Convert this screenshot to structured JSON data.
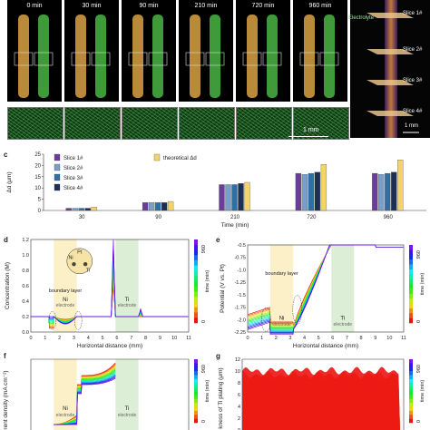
{
  "top_panel": {
    "time_labels": [
      "0 min",
      "30 min",
      "90 min",
      "210 min",
      "720 min",
      "960 min"
    ],
    "scale_bar_inset": "1 mm",
    "rod_view": {
      "electrolyte_label": "Electrolyte",
      "slice_labels": [
        "Slice 1#",
        "Slice 2#",
        "Slice 3#",
        "Slice 4#"
      ],
      "scale_bar": "1 mm"
    }
  },
  "panel_c": {
    "letter": "c",
    "chart_data": {
      "type": "bar",
      "categories": [
        "30",
        "90",
        "210",
        "720",
        "960"
      ],
      "series": [
        {
          "name": "Slice 1#",
          "color": "#6a3d9a",
          "values": [
            1.0,
            3.5,
            11.5,
            16.5,
            16.5
          ]
        },
        {
          "name": "Slice 2#",
          "color": "#7a9ec6",
          "values": [
            1.0,
            3.5,
            11.5,
            16.0,
            16.0
          ]
        },
        {
          "name": "Slice 3#",
          "color": "#2e6fa6",
          "values": [
            1.0,
            3.5,
            11.5,
            16.5,
            16.5
          ]
        },
        {
          "name": "Slice 4#",
          "color": "#1c2f55",
          "values": [
            1.0,
            3.5,
            12.0,
            17.0,
            17.0
          ]
        },
        {
          "name": "theoretical Δd",
          "color": "#f5d36b",
          "values": [
            1.5,
            4.0,
            12.5,
            20.5,
            22.5
          ]
        }
      ],
      "ylabel": "Δd (μm)",
      "xlabel": "Time (min)",
      "ylim": [
        0,
        25
      ],
      "yticks": [
        "0",
        "5",
        "10",
        "15",
        "20",
        "25"
      ],
      "legend": "top-left"
    }
  },
  "panel_d": {
    "letter": "d",
    "ylabel": "Concentration (M)",
    "xlabel": "Horizontal distance (mm)",
    "xticks": [
      "0",
      "1",
      "2",
      "3",
      "4",
      "5",
      "6",
      "7",
      "8",
      "9",
      "10",
      "11"
    ],
    "yticks": [
      "0.0",
      "0.2",
      "0.4",
      "0.6",
      "0.8",
      "1.0",
      "1.2"
    ],
    "ni_label": "Ni",
    "ni_sub": "electrode",
    "ti_label": "Ti",
    "ti_sub": "electrode",
    "boundary_label": "boundary layer",
    "inset": {
      "pt": "Pt",
      "ni": "Ni",
      "ti": "Ti"
    },
    "colorbar_title": "time (min)",
    "colorbar_min": "0",
    "colorbar_max": "960"
  },
  "panel_e": {
    "letter": "e",
    "ylabel": "Potential (V vs. Pt)",
    "xlabel": "Horizontal distance (mm)",
    "xticks": [
      "0",
      "1",
      "2",
      "3",
      "4",
      "5",
      "6",
      "7",
      "8",
      "9",
      "10",
      "11"
    ],
    "yticks": [
      "-0.5",
      "-0.75",
      "-1.0",
      "-1.25",
      "-1.5",
      "-1.75",
      "-2.0",
      "-2.25"
    ],
    "ni_label": "Ni",
    "ni_sub": "electrode",
    "ti_label": "Ti",
    "ti_sub": "electrode",
    "boundary_label": "boundary layer",
    "colorbar_title": "time (min)",
    "colorbar_min": "0",
    "colorbar_max": "960"
  },
  "panel_f": {
    "letter": "f",
    "ylabel": "rent density (mA cm⁻²)",
    "ni_label": "Ni",
    "ni_sub": "electrode",
    "ti_label": "Ti",
    "ti_sub": "electrode",
    "colorbar_title": "time (min)",
    "colorbar_min": "0",
    "colorbar_max": "960"
  },
  "panel_g": {
    "letter": "g",
    "ylabel": "kness of Ti plating (μm)",
    "yticks": [
      "0",
      "2",
      "4",
      "6",
      "8",
      "10",
      "12"
    ],
    "colorbar_title": "time (min)",
    "colorbar_min": "0",
    "colorbar_max": "960"
  }
}
